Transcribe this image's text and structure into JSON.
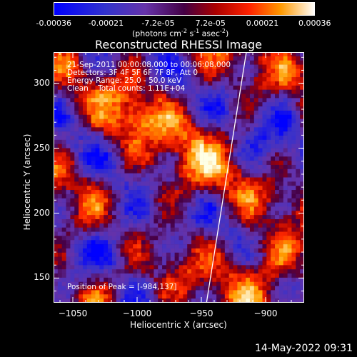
{
  "colorbar": {
    "labels": [
      "-0.00036",
      "-0.00021",
      "-7.2e-05",
      "7.2e-05",
      "0.00021",
      "0.00036"
    ],
    "range": [
      -0.00036,
      0.00036
    ],
    "units_prefix": "(photons cm",
    "units_exp1": "-2",
    "units_mid": " s",
    "units_exp2": "-1",
    "units_mid2": " asec",
    "units_exp3": "-2",
    "units_suffix": ")"
  },
  "chart_data": {
    "type": "heatmap",
    "title": "Reconstructed RHESSI Image",
    "xlabel": "Heliocentric X (arcsec)",
    "ylabel": "Heliocentric Y (arcsec)",
    "xlim": [
      -1065,
      -870
    ],
    "ylim": [
      131,
      324
    ],
    "xticks": [
      -1050,
      -1000,
      -950,
      -900
    ],
    "xtick_labels": [
      "−1050",
      "−1000",
      "−950",
      "−900"
    ],
    "yticks": [
      150,
      200,
      250,
      300
    ],
    "ytick_labels": [
      "150",
      "200",
      "250",
      "300"
    ],
    "limb_line": [
      [
        -946,
        131
      ],
      [
        -915,
        324
      ]
    ],
    "peak": [
      -984,
      137
    ]
  },
  "annotations": {
    "line1": "21-Sep-2011 00:00:08.000 to 00:06:08.000",
    "line2": "Detectors: 3F 4F 5F 6F 7F 8F, Att 0",
    "line3": "Energy Range: 25.0 - 50.0 keV",
    "line4": "Clean    Total counts: 1.11E+04",
    "peak": "Position of Peak = [-984,137]"
  },
  "timestamp": "14-May-2022 09:31"
}
